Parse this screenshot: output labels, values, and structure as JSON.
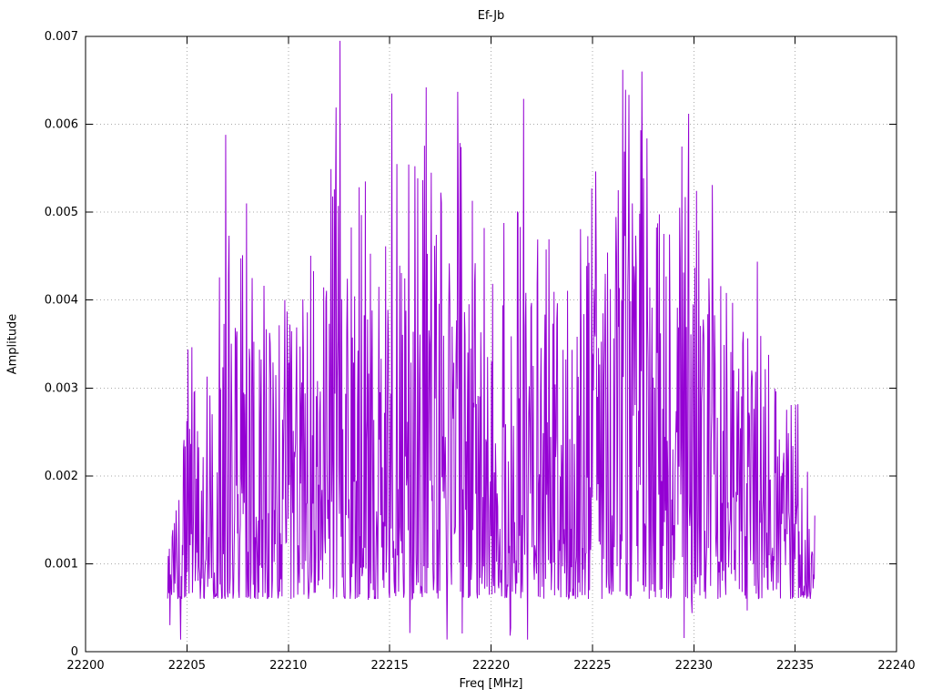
{
  "page": {
    "background": "#ffffff"
  },
  "chart_data": {
    "type": "line",
    "title": "Ef-Jb",
    "xlabel": "Freq [MHz]",
    "ylabel": "Amplitude",
    "xlim": [
      22200,
      22240
    ],
    "ylim": [
      0,
      0.007
    ],
    "grid": true,
    "grid_style": "dotted",
    "grid_color": "#aaaaaa",
    "line_color": "#9400d3",
    "border_color": "#000000",
    "x_ticks": {
      "values": [
        22200,
        22205,
        22210,
        22215,
        22220,
        22225,
        22230,
        22235,
        22240
      ],
      "labels": [
        "22200",
        "22205",
        "22210",
        "22215",
        "22220",
        "22225",
        "22230",
        "22235",
        "22240"
      ]
    },
    "y_ticks": {
      "values": [
        0,
        0.001,
        0.002,
        0.003,
        0.004,
        0.005,
        0.006,
        0.007
      ],
      "labels": [
        "0",
        "0.001",
        "0.002",
        "0.003",
        "0.004",
        "0.005",
        "0.006",
        "0.007"
      ]
    },
    "series": [
      {
        "name": "Ef-Jb",
        "representation": "dense noisy amplitude spectrum reconstructed from peak envelope + seeded noise",
        "x_start": 22204.05,
        "x_end": 22235.97,
        "n_points": 1150,
        "seed": 123457,
        "spike_exponent": 2.0,
        "low_band": 0.0006,
        "dip_probability": 0.012,
        "dip_floor": 0.0001,
        "envelope": [
          [
            22204.0,
            0.0012
          ],
          [
            22204.4,
            0.0016
          ],
          [
            22204.8,
            0.0022
          ],
          [
            22205.1,
            0.0037
          ],
          [
            22205.6,
            0.0036
          ],
          [
            22206.2,
            0.0031
          ],
          [
            22206.9,
            0.0059
          ],
          [
            22207.4,
            0.0041
          ],
          [
            22208.0,
            0.0051
          ],
          [
            22208.6,
            0.0041
          ],
          [
            22209.2,
            0.0046
          ],
          [
            22209.9,
            0.004
          ],
          [
            22210.5,
            0.004
          ],
          [
            22211.2,
            0.0052
          ],
          [
            22211.8,
            0.0046
          ],
          [
            22212.5,
            0.007
          ],
          [
            22213.0,
            0.005
          ],
          [
            22213.6,
            0.0061
          ],
          [
            22214.3,
            0.0053
          ],
          [
            22215.1,
            0.0064
          ],
          [
            22215.8,
            0.0056
          ],
          [
            22216.6,
            0.0064
          ],
          [
            22217.3,
            0.0053
          ],
          [
            22218.2,
            0.0064
          ],
          [
            22218.8,
            0.0056
          ],
          [
            22219.5,
            0.005
          ],
          [
            22220.2,
            0.0048
          ],
          [
            22220.9,
            0.0055
          ],
          [
            22221.6,
            0.0063
          ],
          [
            22222.3,
            0.0048
          ],
          [
            22223.0,
            0.0047
          ],
          [
            22223.8,
            0.0043
          ],
          [
            22224.5,
            0.0051
          ],
          [
            22225.2,
            0.0056
          ],
          [
            22225.9,
            0.0051
          ],
          [
            22226.6,
            0.0066
          ],
          [
            22227.4,
            0.0066
          ],
          [
            22228.1,
            0.0057
          ],
          [
            22228.8,
            0.005
          ],
          [
            22229.7,
            0.0061
          ],
          [
            22230.3,
            0.0056
          ],
          [
            22231.1,
            0.0056
          ],
          [
            22231.9,
            0.0047
          ],
          [
            22232.6,
            0.0048
          ],
          [
            22233.2,
            0.0047
          ],
          [
            22233.9,
            0.0031
          ],
          [
            22234.6,
            0.003
          ],
          [
            22235.3,
            0.003
          ],
          [
            22235.8,
            0.0023
          ],
          [
            22236.0,
            0.0015
          ]
        ],
        "forced_peaks": [
          [
            22206.9,
            0.00588
          ],
          [
            22207.95,
            0.0051
          ],
          [
            22212.55,
            0.00695
          ],
          [
            22215.1,
            0.00635
          ],
          [
            22216.8,
            0.00642
          ],
          [
            22218.35,
            0.00637
          ],
          [
            22221.6,
            0.00629
          ],
          [
            22226.5,
            0.00662
          ],
          [
            22227.45,
            0.0066
          ],
          [
            22229.75,
            0.00612
          ]
        ]
      }
    ]
  }
}
